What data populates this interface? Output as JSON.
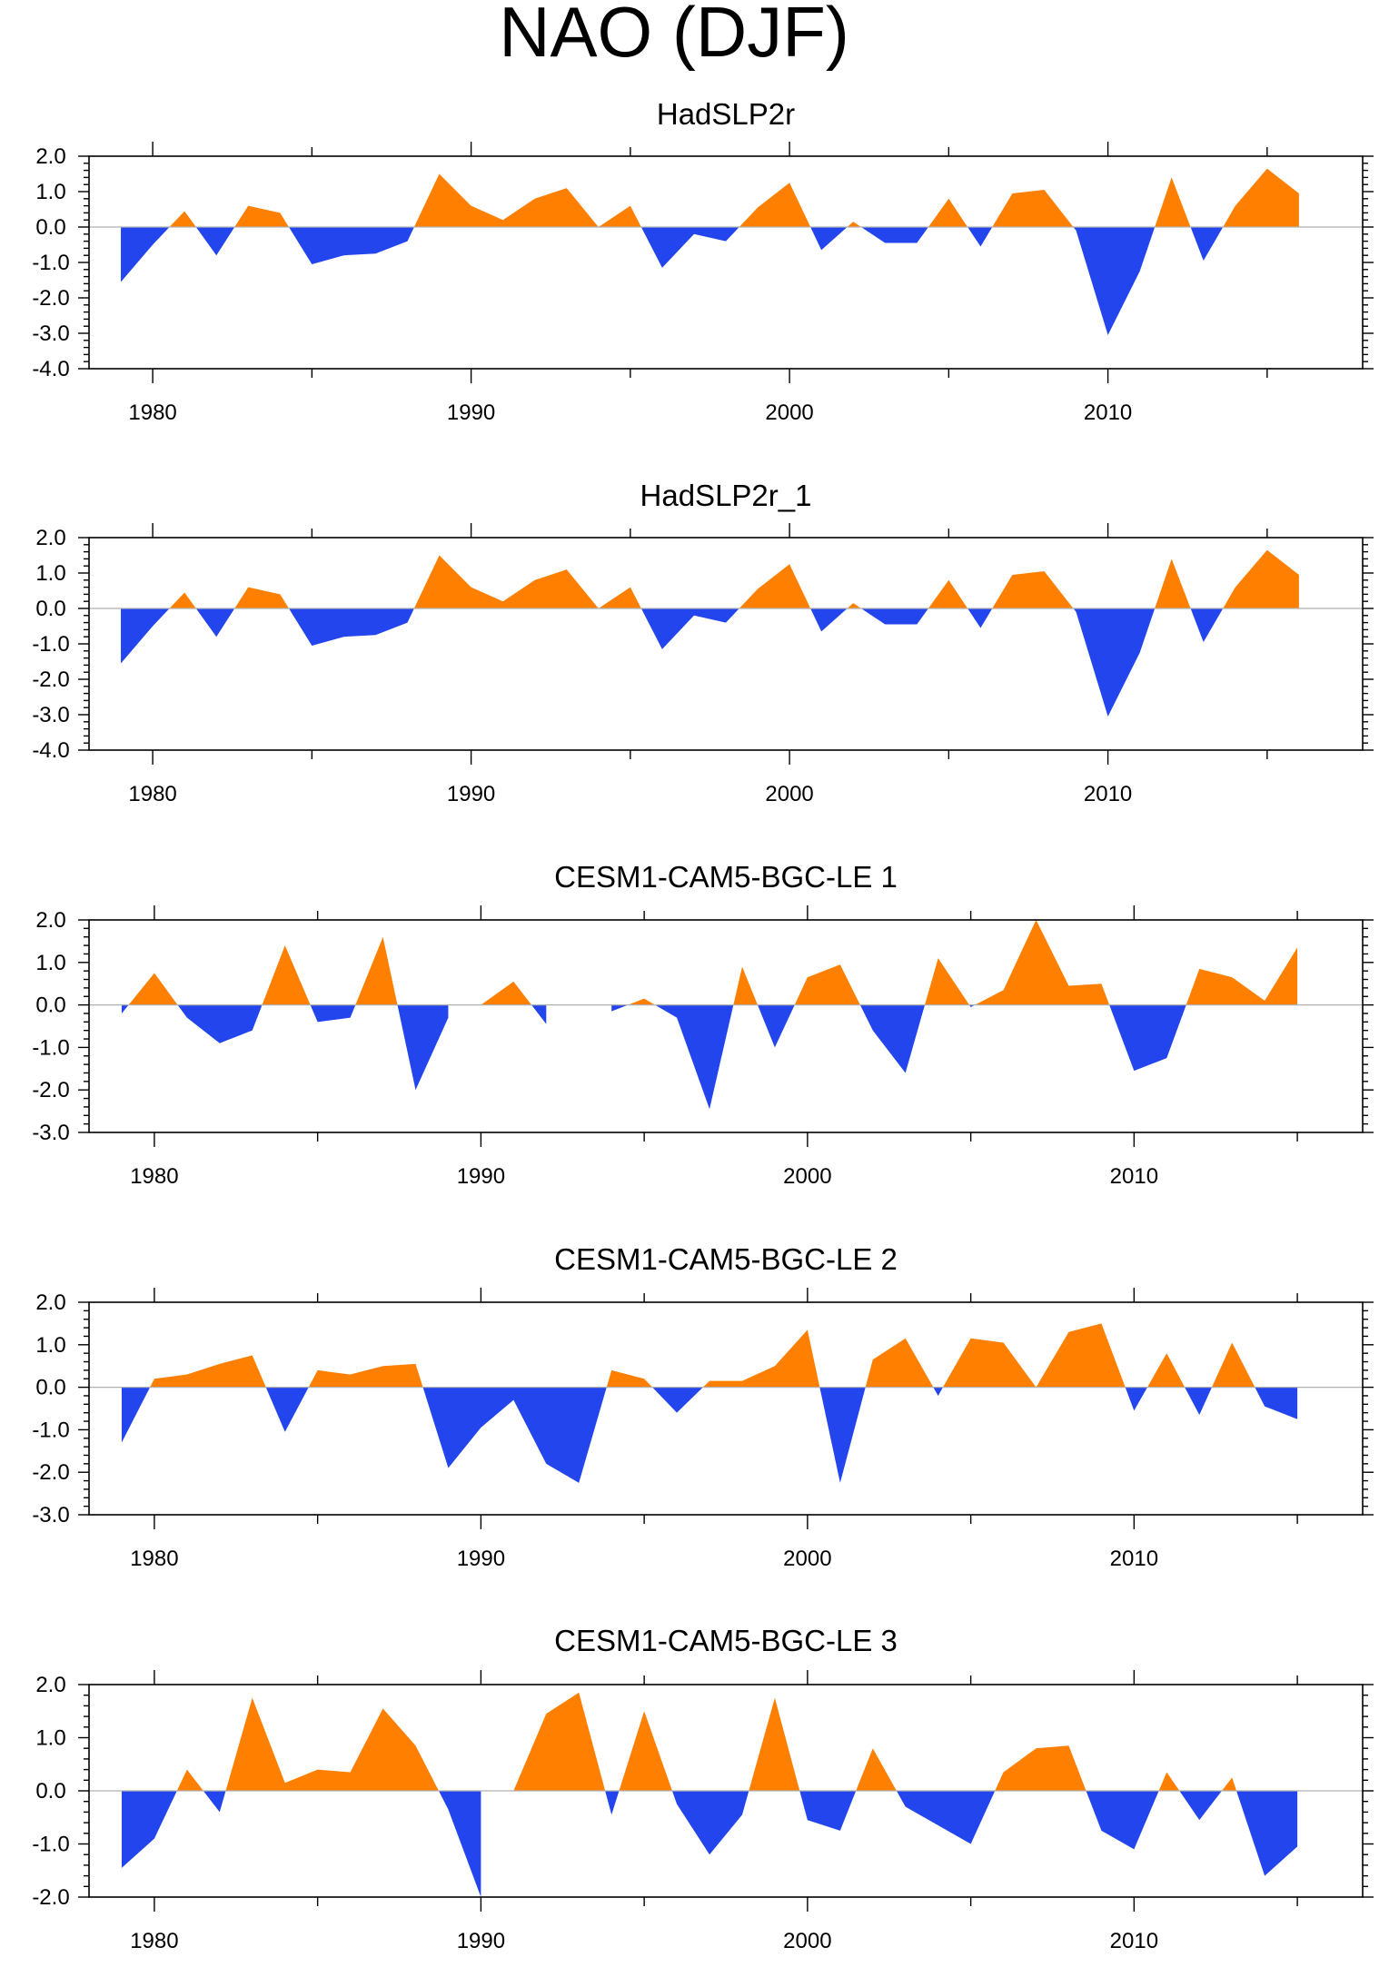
{
  "title": "NAO (DJF)",
  "colors": {
    "positive": "#ff8000",
    "negative": "#2245ee",
    "axis": "#000000",
    "zero_line": "#b0b0b0"
  },
  "chart_data": [
    {
      "type": "area",
      "title": "HadSLP2r",
      "x": [
        1979,
        1980,
        1981,
        1982,
        1983,
        1984,
        1985,
        1986,
        1987,
        1988,
        1989,
        1990,
        1991,
        1992,
        1993,
        1994,
        1995,
        1996,
        1997,
        1998,
        1999,
        2000,
        2001,
        2002,
        2003,
        2004,
        2005,
        2006,
        2007,
        2008,
        2009,
        2010,
        2011,
        2012,
        2013,
        2014,
        2015,
        2016
      ],
      "values": [
        -1.55,
        -0.5,
        0.45,
        -0.8,
        0.6,
        0.4,
        -1.05,
        -0.8,
        -0.75,
        -0.4,
        1.5,
        0.6,
        0.2,
        0.8,
        1.1,
        0.0,
        0.6,
        -1.15,
        -0.2,
        -0.4,
        0.55,
        1.25,
        -0.65,
        0.15,
        -0.45,
        -0.45,
        0.8,
        -0.55,
        0.95,
        1.05,
        -0.1,
        -3.05,
        -1.25,
        1.4,
        -0.95,
        0.6,
        1.65,
        0.95
      ],
      "xlim": [
        1978,
        2018
      ],
      "ylim": [
        -4.0,
        2.0
      ],
      "x_ticks": [
        "1980",
        "1990",
        "2000",
        "2010"
      ],
      "y_ticks": [
        "2.0",
        "1.0",
        "0.0",
        "-1.0",
        "-2.0",
        "-3.0",
        "-4.0"
      ]
    },
    {
      "type": "area",
      "title": "HadSLP2r_1",
      "x": [
        1979,
        1980,
        1981,
        1982,
        1983,
        1984,
        1985,
        1986,
        1987,
        1988,
        1989,
        1990,
        1991,
        1992,
        1993,
        1994,
        1995,
        1996,
        1997,
        1998,
        1999,
        2000,
        2001,
        2002,
        2003,
        2004,
        2005,
        2006,
        2007,
        2008,
        2009,
        2010,
        2011,
        2012,
        2013,
        2014,
        2015,
        2016
      ],
      "values": [
        -1.55,
        -0.5,
        0.45,
        -0.8,
        0.6,
        0.4,
        -1.05,
        -0.8,
        -0.75,
        -0.4,
        1.5,
        0.6,
        0.2,
        0.8,
        1.1,
        0.0,
        0.6,
        -1.15,
        -0.2,
        -0.4,
        0.55,
        1.25,
        -0.65,
        0.15,
        -0.45,
        -0.45,
        0.8,
        -0.55,
        0.95,
        1.05,
        -0.1,
        -3.05,
        -1.25,
        1.4,
        -0.95,
        0.6,
        1.65,
        0.95
      ],
      "xlim": [
        1978,
        2018
      ],
      "ylim": [
        -4.0,
        2.0
      ],
      "x_ticks": [
        "1980",
        "1990",
        "2000",
        "2010"
      ],
      "y_ticks": [
        "2.0",
        "1.0",
        "0.0",
        "-1.0",
        "-2.0",
        "-3.0",
        "-4.0"
      ]
    },
    {
      "type": "area",
      "title": "CESM1-CAM5-BGC-LE 1",
      "x": [
        1979,
        1980,
        1981,
        1982,
        1983,
        1984,
        1985,
        1986,
        1987,
        1988,
        1989,
        1990,
        1991,
        1992,
        1993,
        1994,
        1995,
        1996,
        1997,
        1998,
        1999,
        2000,
        2001,
        2002,
        2003,
        2004,
        2005,
        2006,
        2007,
        2008,
        2009,
        2010,
        2011,
        2012,
        2013,
        2014,
        2015
      ],
      "values": [
        -0.2,
        0.75,
        -0.3,
        -0.9,
        -0.6,
        1.4,
        -0.4,
        -0.3,
        1.6,
        -2.0,
        -0.3,
        0.0,
        0.55,
        -0.45,
        0.0,
        -0.15,
        0.15,
        -0.3,
        -2.45,
        0.9,
        -1.0,
        0.65,
        0.95,
        -0.6,
        -1.6,
        1.1,
        -0.05,
        0.35,
        2.0,
        0.45,
        0.5,
        -1.55,
        -1.25,
        0.85,
        0.65,
        0.1,
        1.35
      ],
      "xlim": [
        1978,
        2017
      ],
      "ylim": [
        -3.0,
        2.0
      ],
      "x_ticks": [
        "1980",
        "1990",
        "2000",
        "2010"
      ],
      "y_ticks": [
        "2.0",
        "1.0",
        "0.0",
        "-1.0",
        "-2.0",
        "-3.0"
      ]
    },
    {
      "type": "area",
      "title": "CESM1-CAM5-BGC-LE 2",
      "x": [
        1979,
        1980,
        1981,
        1982,
        1983,
        1984,
        1985,
        1986,
        1987,
        1988,
        1989,
        1990,
        1991,
        1992,
        1993,
        1994,
        1995,
        1996,
        1997,
        1998,
        1999,
        2000,
        2001,
        2002,
        2003,
        2004,
        2005,
        2006,
        2007,
        2008,
        2009,
        2010,
        2011,
        2012,
        2013,
        2014,
        2015
      ],
      "values": [
        -1.3,
        0.2,
        0.3,
        0.55,
        0.75,
        -1.05,
        0.4,
        0.3,
        0.5,
        0.55,
        -1.9,
        -0.95,
        -0.3,
        -1.8,
        -2.25,
        0.4,
        0.2,
        -0.6,
        0.15,
        0.15,
        0.5,
        1.35,
        -2.25,
        0.65,
        1.15,
        -0.2,
        1.15,
        1.05,
        0.0,
        1.3,
        1.5,
        -0.55,
        0.8,
        -0.65,
        1.05,
        -0.45,
        -0.75
      ],
      "xlim": [
        1978,
        2017
      ],
      "ylim": [
        -3.0,
        2.0
      ],
      "x_ticks": [
        "1980",
        "1990",
        "2000",
        "2010"
      ],
      "y_ticks": [
        "2.0",
        "1.0",
        "0.0",
        "-1.0",
        "-2.0",
        "-3.0"
      ]
    },
    {
      "type": "area",
      "title": "CESM1-CAM5-BGC-LE 3",
      "x": [
        1979,
        1980,
        1981,
        1982,
        1983,
        1984,
        1985,
        1986,
        1987,
        1988,
        1989,
        1990,
        1991,
        1992,
        1993,
        1994,
        1995,
        1996,
        1997,
        1998,
        1999,
        2000,
        2001,
        2002,
        2003,
        2004,
        2005,
        2006,
        2007,
        2008,
        2009,
        2010,
        2011,
        2012,
        2013,
        2014,
        2015
      ],
      "values": [
        -1.45,
        -0.9,
        0.4,
        -0.4,
        1.75,
        0.15,
        0.4,
        0.35,
        1.55,
        0.85,
        -0.35,
        -2.0,
        0.0,
        1.45,
        1.85,
        -0.45,
        1.5,
        -0.25,
        -1.2,
        -0.45,
        1.75,
        -0.55,
        -0.75,
        0.8,
        -0.3,
        -0.65,
        -1.0,
        0.35,
        0.8,
        0.85,
        -0.75,
        -1.1,
        0.35,
        -0.55,
        0.25,
        -1.6,
        -1.05
      ],
      "xlim": [
        1978,
        2017
      ],
      "ylim": [
        -2.0,
        2.0
      ],
      "x_ticks": [
        "1980",
        "1990",
        "2000",
        "2010"
      ],
      "y_ticks": [
        "2.0",
        "1.0",
        "0.0",
        "-1.0",
        "-2.0"
      ]
    }
  ]
}
